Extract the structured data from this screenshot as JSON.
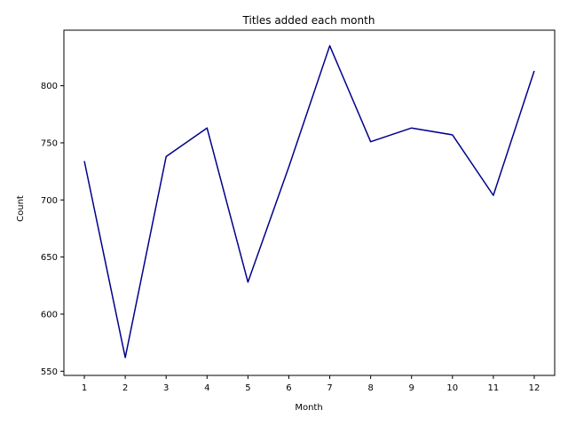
{
  "chart_data": {
    "type": "line",
    "title": "Titles added each month",
    "xlabel": "Month",
    "ylabel": "Count",
    "x": [
      1,
      2,
      3,
      4,
      5,
      6,
      7,
      8,
      9,
      10,
      11,
      12
    ],
    "series": [
      {
        "values": [
          734,
          562,
          738,
          763,
          628,
          729,
          835,
          751,
          763,
          757,
          704,
          813
        ],
        "color": "#00008b"
      }
    ],
    "xlim": [
      0.5,
      12.5
    ],
    "ylim": [
      546.35,
      848.65
    ],
    "xticks": [
      1,
      2,
      3,
      4,
      5,
      6,
      7,
      8,
      9,
      10,
      11,
      12
    ],
    "yticks": [
      550,
      600,
      650,
      700,
      750,
      800
    ],
    "grid": false,
    "legend": "none"
  }
}
